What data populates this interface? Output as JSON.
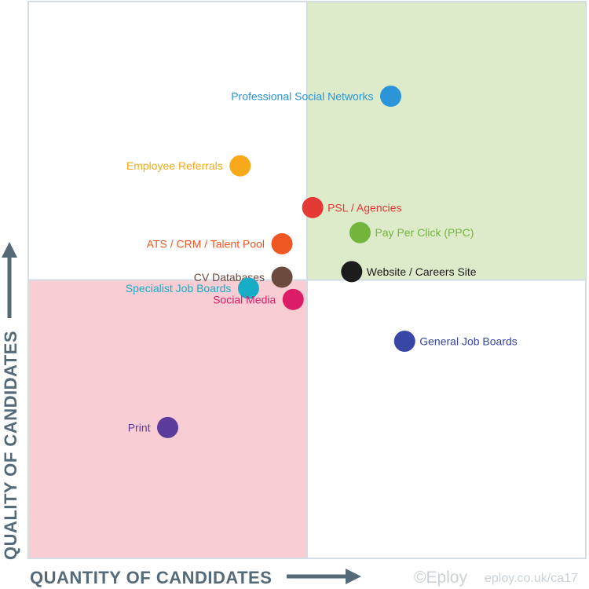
{
  "chart_data": {
    "type": "scatter",
    "title": "",
    "xlabel": "QUANTITY OF CANDIDATES",
    "ylabel": "QUALITY OF CANDIDATES",
    "xlim": [
      0,
      100
    ],
    "ylim": [
      0,
      100
    ],
    "grid": false,
    "quadrants": [
      {
        "position": "top-left",
        "color": "#ffffff"
      },
      {
        "position": "top-right",
        "color": "#deebcb"
      },
      {
        "position": "bottom-left",
        "color": "#f8cdd4"
      },
      {
        "position": "bottom-right",
        "color": "#ffffff"
      }
    ],
    "points": [
      {
        "name": "Professional Social Networks",
        "x": 65,
        "y": 83,
        "color": "#2a96d9",
        "label_side": "left"
      },
      {
        "name": "Employee Referrals",
        "x": 38,
        "y": 70.5,
        "color": "#f7a81b",
        "label_side": "left"
      },
      {
        "name": "PSL / Agencies",
        "x": 51,
        "y": 63,
        "color": "#e53935",
        "label_side": "right"
      },
      {
        "name": "Pay Per Click (PPC)",
        "x": 59.5,
        "y": 58.5,
        "color": "#72b53a",
        "label_side": "right"
      },
      {
        "name": "ATS / CRM / Talent Pool",
        "x": 45.5,
        "y": 56.5,
        "color": "#ee5722",
        "label_side": "left"
      },
      {
        "name": "CV Databases",
        "x": 45.5,
        "y": 50.5,
        "color": "#6d4a3e",
        "label_side": "left"
      },
      {
        "name": "Website / Careers Site",
        "x": 58,
        "y": 51.5,
        "color": "#1c1c1c",
        "label_side": "right"
      },
      {
        "name": "Specialist Job Boards",
        "x": 39.5,
        "y": 48.5,
        "color": "#18adc7",
        "label_side": "left"
      },
      {
        "name": "Social Media",
        "x": 47.5,
        "y": 46.5,
        "color": "#dd1c68",
        "label_side": "left"
      },
      {
        "name": "General Job Boards",
        "x": 67.5,
        "y": 39,
        "color": "#3846a6",
        "label_side": "right"
      },
      {
        "name": "Print",
        "x": 25,
        "y": 23.5,
        "color": "#5b3c9a",
        "label_side": "left"
      }
    ]
  },
  "credit": {
    "brand": "©Eploy",
    "url": "eploy.co.uk/ca17"
  }
}
